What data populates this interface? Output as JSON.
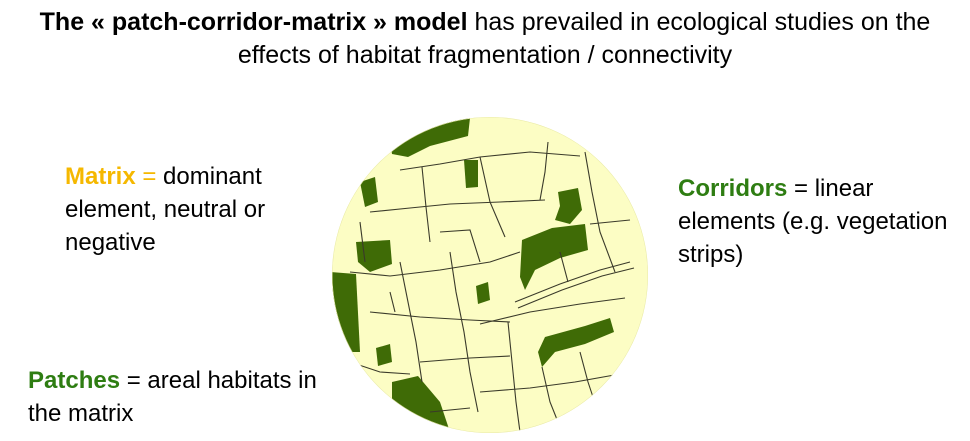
{
  "title": {
    "bold": "The « patch-corridor-matrix » model",
    "rest_line1": " has prevailed in ecological studies on the",
    "line2": "effects of habitat fragmentation / connectivity"
  },
  "matrix": {
    "term": "Matrix",
    "eq": " =",
    "desc": " dominant element, neutral or negative"
  },
  "corridors": {
    "term": "Corridors",
    "desc": " = linear elements (e.g. vegetation strips)"
  },
  "patches": {
    "term": "Patches",
    "desc": " = areal habitats in the matrix"
  },
  "colors": {
    "matrix_fill": "#fcfdc4",
    "patch_fill": "#3f6b06",
    "line": "#3a3a2a",
    "matrix_text": "#f5b800",
    "green_text": "#2e7d12"
  }
}
